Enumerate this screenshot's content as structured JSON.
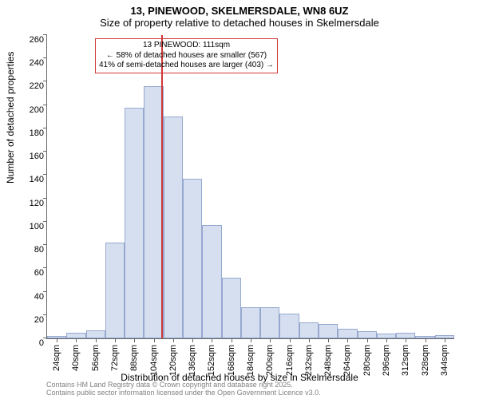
{
  "titles": {
    "line1": "13, PINEWOOD, SKELMERSDALE, WN8 6UZ",
    "line2": "Size of property relative to detached houses in Skelmersdale"
  },
  "chart": {
    "type": "histogram",
    "ylabel": "Number of detached properties",
    "xlabel": "Distribution of detached houses by size in Skelmersdale",
    "ylim": [
      0,
      260
    ],
    "ytick_step": 20,
    "background_color": "#ffffff",
    "bar_fill": "#d5dff0",
    "bar_border": "#96a8cf",
    "refline_color": "#cf3838",
    "refline_x": 111,
    "x_start": 16,
    "x_step": 16,
    "x_count": 21,
    "x_tick_start": 24,
    "x_tick_step": 16,
    "x_tick_count": 21,
    "x_tick_unit": "sqm",
    "bar_values": [
      2,
      5,
      7,
      82,
      198,
      216,
      190,
      137,
      97,
      52,
      27,
      27,
      21,
      14,
      12,
      8,
      6,
      4,
      5,
      2,
      3
    ],
    "annotation": {
      "line1": "13 PINEWOOD: 111sqm",
      "line2": "← 58% of detached houses are smaller (567)",
      "line3": "41% of semi-detached houses are larger (403) →"
    },
    "yticks": [
      0,
      20,
      40,
      60,
      80,
      100,
      120,
      140,
      160,
      180,
      200,
      220,
      240,
      260
    ]
  },
  "attribution": {
    "line1": "Contains HM Land Registry data © Crown copyright and database right 2025.",
    "line2": "Contains public sector information licensed under the Open Government Licence v3.0."
  }
}
